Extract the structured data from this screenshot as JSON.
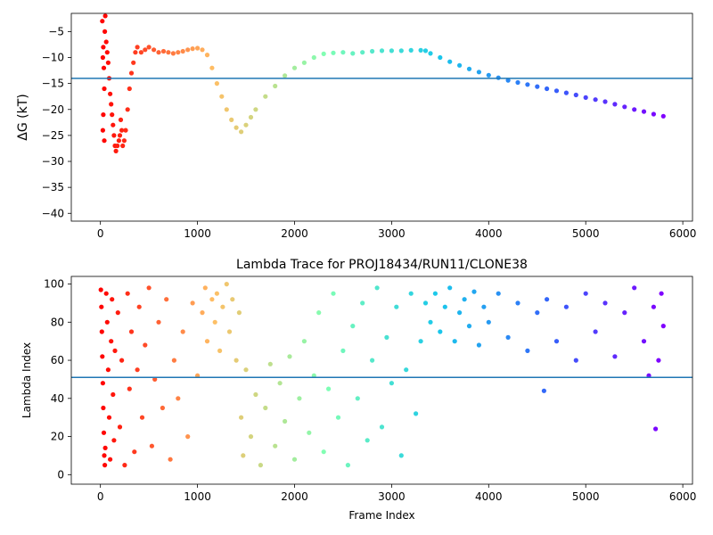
{
  "chart_data": [
    {
      "type": "scatter",
      "title": "",
      "xlabel": "",
      "ylabel": "ΔG (kT)",
      "xlim": [
        -300,
        6100
      ],
      "ylim": [
        -41.5,
        -1.5
      ],
      "xticks": [
        0,
        1000,
        2000,
        3000,
        4000,
        5000,
        6000
      ],
      "yticks": [
        -40,
        -35,
        -30,
        -25,
        -20,
        -15,
        -10,
        -5
      ],
      "hline": -14,
      "colormap": "rainbow",
      "x_max": 5800,
      "points": [
        [
          20,
          -3
        ],
        [
          30,
          -8
        ],
        [
          25,
          -10
        ],
        [
          35,
          -12
        ],
        [
          40,
          -16
        ],
        [
          30,
          -21
        ],
        [
          25,
          -24
        ],
        [
          40,
          -26
        ],
        [
          45,
          -5
        ],
        [
          50,
          -2
        ],
        [
          60,
          -7
        ],
        [
          70,
          -9
        ],
        [
          80,
          -11
        ],
        [
          90,
          -14
        ],
        [
          100,
          -17
        ],
        [
          110,
          -19
        ],
        [
          120,
          -21
        ],
        [
          130,
          -23
        ],
        [
          140,
          -25
        ],
        [
          150,
          -27
        ],
        [
          160,
          -28
        ],
        [
          175,
          -27
        ],
        [
          190,
          -26
        ],
        [
          200,
          -25
        ],
        [
          210,
          -22
        ],
        [
          220,
          -24
        ],
        [
          230,
          -27
        ],
        [
          245,
          -26
        ],
        [
          260,
          -24
        ],
        [
          280,
          -20
        ],
        [
          300,
          -16
        ],
        [
          320,
          -13
        ],
        [
          340,
          -11
        ],
        [
          360,
          -9
        ],
        [
          380,
          -8
        ],
        [
          420,
          -9
        ],
        [
          460,
          -8.5
        ],
        [
          500,
          -8
        ],
        [
          550,
          -8.5
        ],
        [
          600,
          -9
        ],
        [
          650,
          -8.8
        ],
        [
          700,
          -9
        ],
        [
          750,
          -9.2
        ],
        [
          800,
          -9
        ],
        [
          850,
          -8.8
        ],
        [
          900,
          -8.5
        ],
        [
          950,
          -8.3
        ],
        [
          1000,
          -8.2
        ],
        [
          1050,
          -8.5
        ],
        [
          1100,
          -9.5
        ],
        [
          1150,
          -12
        ],
        [
          1200,
          -15
        ],
        [
          1250,
          -17.5
        ],
        [
          1300,
          -20
        ],
        [
          1350,
          -22
        ],
        [
          1400,
          -23.5
        ],
        [
          1450,
          -24.3
        ],
        [
          1500,
          -23
        ],
        [
          1550,
          -21.5
        ],
        [
          1600,
          -20
        ],
        [
          1700,
          -17.5
        ],
        [
          1800,
          -15.5
        ],
        [
          1900,
          -13.5
        ],
        [
          2000,
          -12
        ],
        [
          2100,
          -11
        ],
        [
          2200,
          -10
        ],
        [
          2300,
          -9.3
        ],
        [
          2400,
          -9.1
        ],
        [
          2500,
          -9
        ],
        [
          2600,
          -9.2
        ],
        [
          2700,
          -9
        ],
        [
          2800,
          -8.8
        ],
        [
          2900,
          -8.7
        ],
        [
          3000,
          -8.7
        ],
        [
          3100,
          -8.7
        ],
        [
          3200,
          -8.6
        ],
        [
          3300,
          -8.6
        ],
        [
          3350,
          -8.7
        ],
        [
          3400,
          -9.2
        ],
        [
          3500,
          -10
        ],
        [
          3600,
          -10.8
        ],
        [
          3700,
          -11.5
        ],
        [
          3800,
          -12.2
        ],
        [
          3900,
          -12.8
        ],
        [
          4000,
          -13.4
        ],
        [
          4100,
          -13.9
        ],
        [
          4200,
          -14.4
        ],
        [
          4300,
          -14.8
        ],
        [
          4400,
          -15.2
        ],
        [
          4500,
          -15.6
        ],
        [
          4600,
          -16
        ],
        [
          4700,
          -16.4
        ],
        [
          4800,
          -16.8
        ],
        [
          4900,
          -17.2
        ],
        [
          5000,
          -17.7
        ],
        [
          5100,
          -18.1
        ],
        [
          5200,
          -18.5
        ],
        [
          5300,
          -19
        ],
        [
          5400,
          -19.5
        ],
        [
          5500,
          -20
        ],
        [
          5600,
          -20.4
        ],
        [
          5700,
          -20.9
        ],
        [
          5800,
          -21.3
        ]
      ]
    },
    {
      "type": "scatter",
      "title": "Lambda Trace for PROJ18434/RUN11/CLONE38",
      "xlabel": "Frame Index",
      "ylabel": "Lambda Index",
      "xlim": [
        -300,
        6100
      ],
      "ylim": [
        -5,
        104
      ],
      "xticks": [
        0,
        1000,
        2000,
        3000,
        4000,
        5000,
        6000
      ],
      "yticks": [
        0,
        20,
        40,
        60,
        80,
        100
      ],
      "hline": 51,
      "colormap": "rainbow",
      "x_max": 5800,
      "points": [
        [
          5,
          97
        ],
        [
          10,
          88
        ],
        [
          15,
          75
        ],
        [
          20,
          62
        ],
        [
          25,
          48
        ],
        [
          30,
          35
        ],
        [
          35,
          22
        ],
        [
          40,
          10
        ],
        [
          45,
          5
        ],
        [
          50,
          14
        ],
        [
          60,
          95
        ],
        [
          70,
          80
        ],
        [
          80,
          55
        ],
        [
          90,
          30
        ],
        [
          100,
          8
        ],
        [
          110,
          70
        ],
        [
          120,
          92
        ],
        [
          130,
          42
        ],
        [
          140,
          18
        ],
        [
          150,
          65
        ],
        [
          180,
          85
        ],
        [
          200,
          25
        ],
        [
          220,
          60
        ],
        [
          250,
          5
        ],
        [
          280,
          95
        ],
        [
          300,
          45
        ],
        [
          320,
          75
        ],
        [
          350,
          12
        ],
        [
          380,
          55
        ],
        [
          400,
          88
        ],
        [
          430,
          30
        ],
        [
          460,
          68
        ],
        [
          500,
          98
        ],
        [
          530,
          15
        ],
        [
          560,
          50
        ],
        [
          600,
          80
        ],
        [
          640,
          35
        ],
        [
          680,
          92
        ],
        [
          720,
          8
        ],
        [
          760,
          60
        ],
        [
          800,
          40
        ],
        [
          850,
          75
        ],
        [
          900,
          20
        ],
        [
          950,
          90
        ],
        [
          1000,
          52
        ],
        [
          1050,
          85
        ],
        [
          1080,
          98
        ],
        [
          1100,
          70
        ],
        [
          1150,
          92
        ],
        [
          1180,
          80
        ],
        [
          1200,
          95
        ],
        [
          1230,
          65
        ],
        [
          1260,
          88
        ],
        [
          1300,
          100
        ],
        [
          1330,
          75
        ],
        [
          1360,
          92
        ],
        [
          1400,
          60
        ],
        [
          1430,
          85
        ],
        [
          1450,
          30
        ],
        [
          1470,
          10
        ],
        [
          1500,
          55
        ],
        [
          1550,
          20
        ],
        [
          1600,
          42
        ],
        [
          1650,
          5
        ],
        [
          1700,
          35
        ],
        [
          1750,
          58
        ],
        [
          1800,
          15
        ],
        [
          1850,
          48
        ],
        [
          1900,
          28
        ],
        [
          1950,
          62
        ],
        [
          2000,
          8
        ],
        [
          2050,
          40
        ],
        [
          2100,
          70
        ],
        [
          2150,
          22
        ],
        [
          2200,
          52
        ],
        [
          2250,
          85
        ],
        [
          2300,
          12
        ],
        [
          2350,
          45
        ],
        [
          2400,
          95
        ],
        [
          2450,
          30
        ],
        [
          2500,
          65
        ],
        [
          2550,
          5
        ],
        [
          2600,
          78
        ],
        [
          2650,
          40
        ],
        [
          2700,
          90
        ],
        [
          2750,
          18
        ],
        [
          2800,
          60
        ],
        [
          2850,
          98
        ],
        [
          2900,
          25
        ],
        [
          2950,
          72
        ],
        [
          3000,
          48
        ],
        [
          3050,
          88
        ],
        [
          3100,
          10
        ],
        [
          3150,
          55
        ],
        [
          3200,
          95
        ],
        [
          3250,
          32
        ],
        [
          3300,
          70
        ],
        [
          3350,
          90
        ],
        [
          3400,
          80
        ],
        [
          3450,
          95
        ],
        [
          3500,
          75
        ],
        [
          3550,
          88
        ],
        [
          3600,
          98
        ],
        [
          3650,
          70
        ],
        [
          3700,
          85
        ],
        [
          3750,
          92
        ],
        [
          3800,
          78
        ],
        [
          3850,
          96
        ],
        [
          3900,
          68
        ],
        [
          3950,
          88
        ],
        [
          4000,
          80
        ],
        [
          4100,
          95
        ],
        [
          4200,
          72
        ],
        [
          4300,
          90
        ],
        [
          4400,
          65
        ],
        [
          4500,
          85
        ],
        [
          4570,
          44
        ],
        [
          4600,
          92
        ],
        [
          4700,
          70
        ],
        [
          4800,
          88
        ],
        [
          4900,
          60
        ],
        [
          5000,
          95
        ],
        [
          5100,
          75
        ],
        [
          5200,
          90
        ],
        [
          5300,
          62
        ],
        [
          5400,
          85
        ],
        [
          5500,
          98
        ],
        [
          5600,
          70
        ],
        [
          5650,
          52
        ],
        [
          5700,
          88
        ],
        [
          5720,
          24
        ],
        [
          5750,
          60
        ],
        [
          5780,
          95
        ],
        [
          5800,
          78
        ]
      ]
    }
  ]
}
